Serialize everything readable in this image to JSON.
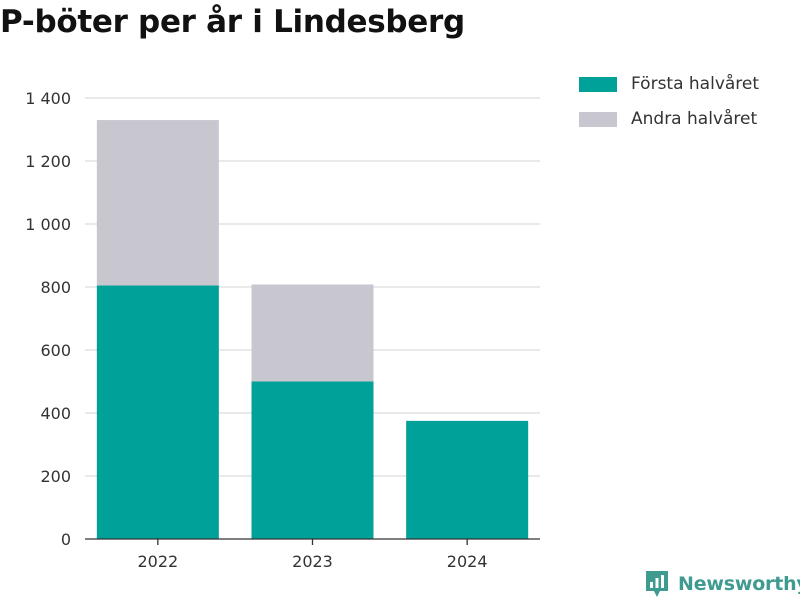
{
  "chart_data": {
    "type": "bar",
    "stacked": true,
    "title": "P-böter per år i Lindesberg",
    "xlabel": "",
    "ylabel": "",
    "categories": [
      "2022",
      "2023",
      "2024"
    ],
    "series": [
      {
        "name": "Första halvåret",
        "color": "#00a199",
        "values": [
          805,
          500,
          375
        ]
      },
      {
        "name": "Andra halvåret",
        "color": "#c8c7d0",
        "values": [
          525,
          308,
          0
        ]
      }
    ],
    "yticks": [
      0,
      200,
      400,
      600,
      800,
      1000,
      1200,
      1400
    ],
    "ytick_labels": [
      "0",
      "200",
      "400",
      "600",
      "800",
      "1 000",
      "1 200",
      "1 400"
    ],
    "ylim": [
      0,
      1400
    ],
    "grid": true,
    "legend": "top-right"
  },
  "brand": {
    "name": "Newsworthy",
    "icon": "newsworthy-logo-icon",
    "color": "#3f9a8f"
  }
}
